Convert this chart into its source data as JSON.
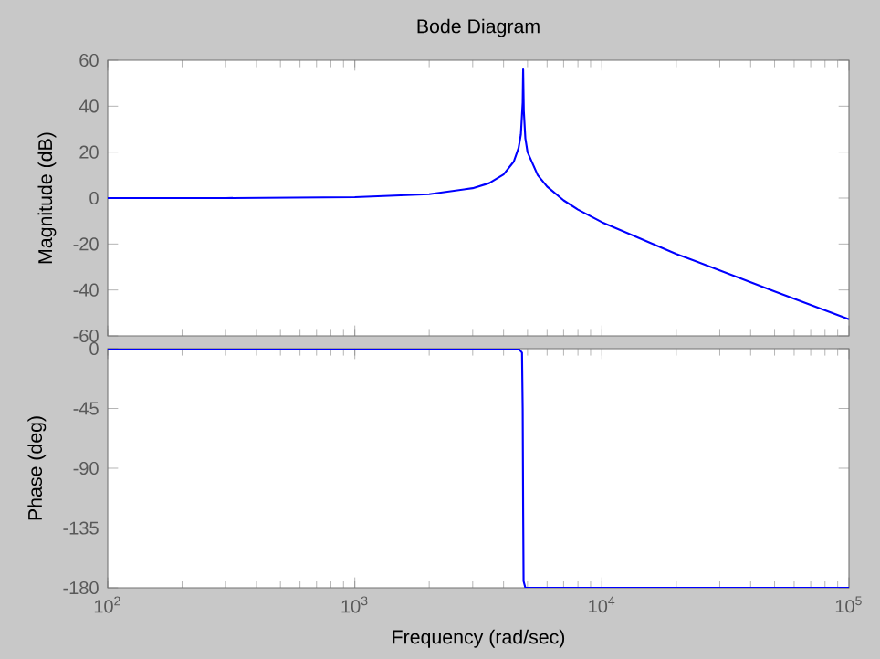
{
  "chart_data": [
    {
      "type": "line",
      "title": "Bode Diagram",
      "ylabel": "Magnitude (dB)",
      "log": "x",
      "tick_labels": "y",
      "color": "#0000ff",
      "x": [
        100,
        300,
        1000,
        2000,
        3000,
        3500,
        4000,
        4400,
        4600,
        4700,
        4780,
        4800,
        4830,
        4900,
        5000,
        5500,
        6000,
        7000,
        8000,
        10000,
        20000,
        50000,
        100000
      ],
      "values": [
        0,
        0,
        0.4,
        1.7,
        4.3,
        6.5,
        10.3,
        15.9,
        21.8,
        27.7,
        41.6,
        56,
        38,
        26,
        20,
        10,
        5,
        -1,
        -5,
        -10.5,
        -24.3,
        -40.6,
        -52.7
      ],
      "xlim": [
        100,
        100000
      ],
      "ylim": [
        -60,
        60
      ],
      "xticks": [
        {
          "value": 100,
          "label": null
        },
        {
          "value": 1000,
          "label": null
        },
        {
          "value": 10000,
          "label": null
        },
        {
          "value": 100000,
          "label": null
        }
      ],
      "yticks": [
        -60,
        -40,
        -20,
        0,
        20,
        40,
        60
      ]
    },
    {
      "type": "line",
      "xlabel": "Frequency  (rad/sec)",
      "ylabel": "Phase (deg)",
      "log": "x",
      "color": "#0000ff",
      "x": [
        100,
        1000,
        4600,
        4750,
        4780,
        4800,
        4820,
        4900,
        10000,
        100000
      ],
      "values": [
        0,
        0,
        0,
        -3,
        -45,
        -120,
        -175,
        -180,
        -180,
        -180
      ],
      "xlim": [
        100,
        100000
      ],
      "ylim": [
        -180,
        0
      ],
      "xticks": [
        {
          "value": 100,
          "label": "10$^{2}$"
        },
        {
          "value": 1000,
          "label": "10$^{3}$"
        },
        {
          "value": 10000,
          "label": "10$^{4}$"
        },
        {
          "value": 100000,
          "label": "10$^{5}$"
        }
      ],
      "yticks": [
        -180,
        -135,
        -90,
        -45,
        0
      ]
    }
  ]
}
